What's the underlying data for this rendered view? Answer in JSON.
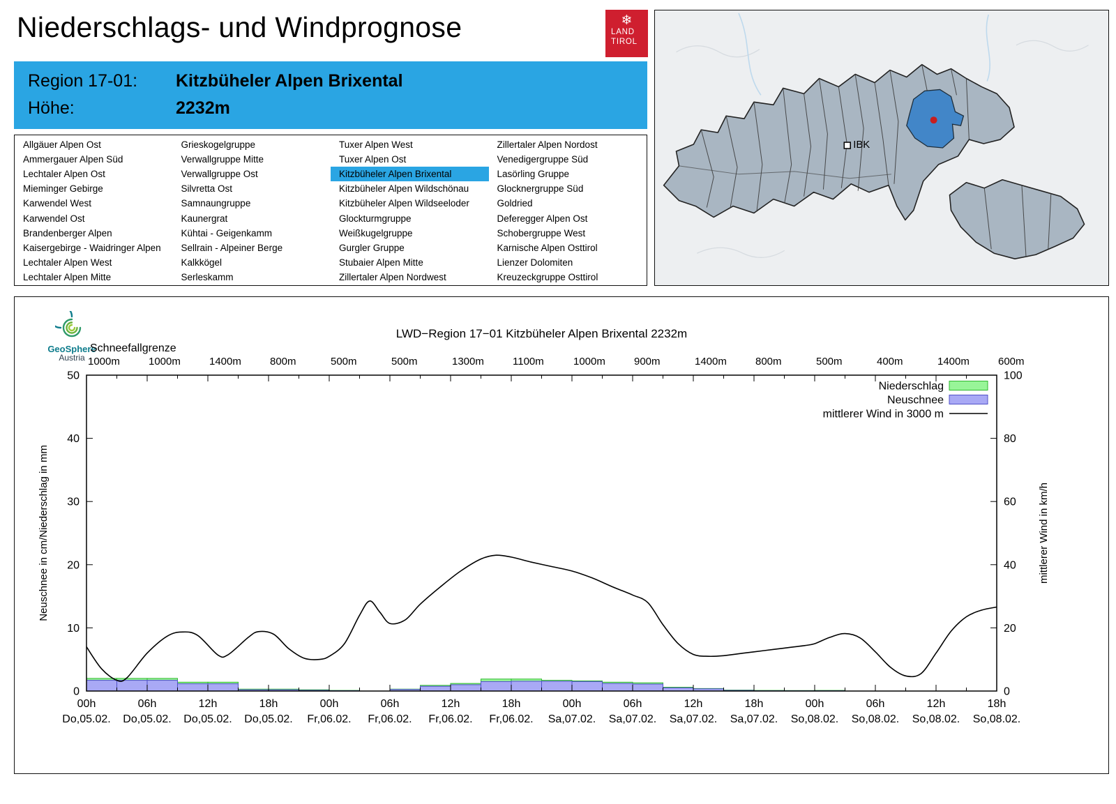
{
  "page": {
    "title": "Niederschlags- und Windprognose"
  },
  "tirol_logo": {
    "snowflake": "❄",
    "line1": "LAND",
    "line2": "TIROL"
  },
  "map": {
    "ibk_label": "IBK"
  },
  "header": {
    "region_label": "Region 17-01:",
    "region_value": "Kitzbüheler Alpen Brixental",
    "altitude_label": "Höhe:",
    "altitude_value": "2232m"
  },
  "region_list": {
    "selected": "Kitzbüheler Alpen Brixental",
    "highlight_color": "#2aa5e3",
    "columns": [
      [
        "Allgäuer Alpen Ost",
        "Ammergauer Alpen Süd",
        "Lechtaler Alpen Ost",
        "Mieminger Gebirge",
        "Karwendel West",
        "Karwendel Ost",
        "Brandenberger Alpen",
        "Kaisergebirge - Waidringer Alpen",
        "Lechtaler Alpen West",
        "Lechtaler Alpen Mitte"
      ],
      [
        "Grieskogelgruppe",
        "Verwallgruppe Mitte",
        "Verwallgruppe Ost",
        "Silvretta Ost",
        "Samnaungruppe",
        "Kaunergrat",
        "Kühtai - Geigenkamm",
        "Sellrain - Alpeiner Berge",
        "Kalkkögel",
        "Serleskamm"
      ],
      [
        "Tuxer Alpen West",
        "Tuxer Alpen Ost",
        "Kitzbüheler Alpen Brixental",
        "Kitzbüheler Alpen Wildschönau",
        "Kitzbüheler Alpen Wildseeloder",
        "Glockturmgruppe",
        "Weißkugelgruppe",
        "Gurgler Gruppe",
        "Stubaier Alpen Mitte",
        "Zillertaler Alpen Nordwest"
      ],
      [
        "Zillertaler Alpen Nordost",
        "Venedigergruppe Süd",
        "Lasörling Gruppe",
        "Glocknergruppe Süd",
        "Goldried",
        "Deferegger Alpen Ost",
        "Schobergruppe West",
        "Karnische Alpen Osttirol",
        "Lienzer Dolomiten",
        "Kreuzeckgruppe Osttirol"
      ]
    ]
  },
  "geosphere_logo": {
    "name": "GeoSphere",
    "country": "Austria"
  },
  "chart_data": {
    "type": "composite-bars-line",
    "title": "LWD−Region 17−01 Kitzbüheler Alpen Brixental 2232m",
    "snowline_label": "Schneefallgrenze",
    "snowline_values": [
      "1000m",
      "1000m",
      "1400m",
      "800m",
      "500m",
      "500m",
      "1300m",
      "1100m",
      "1000m",
      "900m",
      "1400m",
      "800m",
      "500m",
      "400m",
      "1400m",
      "600m"
    ],
    "ylabel_left": "Neuschnee in cm/Niederschlag in mm",
    "ylabel_right": "mittlerer Wind in km/h",
    "ylim_left": [
      0,
      50
    ],
    "ylim_right": [
      0,
      100
    ],
    "x_total_hours": 90,
    "x_ticks": [
      {
        "hour": 0,
        "time": "00h",
        "date": "Do,05.02."
      },
      {
        "hour": 6,
        "time": "06h",
        "date": "Do,05.02."
      },
      {
        "hour": 12,
        "time": "12h",
        "date": "Do,05.02."
      },
      {
        "hour": 18,
        "time": "18h",
        "date": "Do,05.02."
      },
      {
        "hour": 24,
        "time": "00h",
        "date": "Fr,06.02."
      },
      {
        "hour": 30,
        "time": "06h",
        "date": "Fr,06.02."
      },
      {
        "hour": 36,
        "time": "12h",
        "date": "Fr,06.02."
      },
      {
        "hour": 42,
        "time": "18h",
        "date": "Fr,06.02."
      },
      {
        "hour": 48,
        "time": "00h",
        "date": "Sa,07.02."
      },
      {
        "hour": 54,
        "time": "06h",
        "date": "Sa,07.02."
      },
      {
        "hour": 60,
        "time": "12h",
        "date": "Sa,07.02."
      },
      {
        "hour": 66,
        "time": "18h",
        "date": "Sa,07.02."
      },
      {
        "hour": 72,
        "time": "00h",
        "date": "So,08.02."
      },
      {
        "hour": 78,
        "time": "06h",
        "date": "So,08.02."
      },
      {
        "hour": 84,
        "time": "12h",
        "date": "So,08.02."
      },
      {
        "hour": 90,
        "time": "18h",
        "date": "So,08.02."
      }
    ],
    "legend": [
      {
        "label": "Niederschlag",
        "swatch": "box",
        "series": "niederschlag"
      },
      {
        "label": "Neuschnee",
        "swatch": "box",
        "series": "neuschnee"
      },
      {
        "label": "mittlerer Wind in 3000 m",
        "swatch": "line",
        "series": "wind"
      }
    ],
    "colors": {
      "niederschlag_fill": "#98f598",
      "niederschlag_stroke": "#2eb82e",
      "neuschnee_fill": "#a9a9f5",
      "neuschnee_stroke": "#5050c8",
      "wind": "#000000"
    },
    "bars": {
      "bin_hours": 3,
      "niederschlag_mm": [
        2.0,
        2.0,
        2.0,
        1.4,
        1.4,
        0.3,
        0.3,
        0.2,
        0.1,
        0,
        0.3,
        0.9,
        1.2,
        1.9,
        1.9,
        1.7,
        1.6,
        1.4,
        1.3,
        0.6,
        0.4,
        0.15,
        0.1,
        0.08,
        0.1,
        0,
        0,
        0,
        0,
        0
      ],
      "neuschnee_cm": [
        1.7,
        1.7,
        1.7,
        1.15,
        1.15,
        0.2,
        0.2,
        0.12,
        0.06,
        0,
        0.25,
        0.75,
        1.0,
        1.5,
        1.55,
        1.55,
        1.5,
        1.2,
        1.1,
        0.5,
        0.35,
        0.1,
        0.05,
        0.04,
        0.05,
        0,
        0,
        0,
        0,
        0
      ]
    },
    "wind_kmh": [
      [
        0,
        14
      ],
      [
        1.5,
        7
      ],
      [
        3,
        3.4
      ],
      [
        4,
        4.2
      ],
      [
        6,
        12
      ],
      [
        8,
        17.4
      ],
      [
        9.5,
        18.7
      ],
      [
        11,
        17.6
      ],
      [
        13,
        11.4
      ],
      [
        14,
        11.5
      ],
      [
        16,
        17
      ],
      [
        17,
        18.8
      ],
      [
        18.5,
        18
      ],
      [
        20,
        13.4
      ],
      [
        21.5,
        10.4
      ],
      [
        23,
        10
      ],
      [
        24,
        11
      ],
      [
        25.5,
        15
      ],
      [
        27,
        24
      ],
      [
        28,
        28.5
      ],
      [
        29,
        25
      ],
      [
        30,
        21.4
      ],
      [
        31.5,
        22.5
      ],
      [
        33,
        27.5
      ],
      [
        35,
        33
      ],
      [
        37,
        38
      ],
      [
        39,
        41.8
      ],
      [
        40.5,
        43
      ],
      [
        42,
        42.4
      ],
      [
        44,
        40.8
      ],
      [
        46,
        39.4
      ],
      [
        48,
        38
      ],
      [
        50,
        35.8
      ],
      [
        52,
        33
      ],
      [
        54,
        30.4
      ],
      [
        55.5,
        28
      ],
      [
        57,
        21
      ],
      [
        58.5,
        15
      ],
      [
        60,
        11.6
      ],
      [
        61.5,
        11
      ],
      [
        63,
        11.2
      ],
      [
        65,
        12
      ],
      [
        67,
        12.8
      ],
      [
        69,
        13.6
      ],
      [
        71,
        14.4
      ],
      [
        72,
        15
      ],
      [
        73.5,
        17
      ],
      [
        75,
        18.2
      ],
      [
        76.5,
        16.8
      ],
      [
        78,
        12.4
      ],
      [
        79.5,
        7.5
      ],
      [
        81,
        4.8
      ],
      [
        82.5,
        5.5
      ],
      [
        84,
        12
      ],
      [
        85.5,
        19
      ],
      [
        87,
        23.5
      ],
      [
        88.5,
        25.6
      ],
      [
        90,
        26.6
      ]
    ]
  }
}
